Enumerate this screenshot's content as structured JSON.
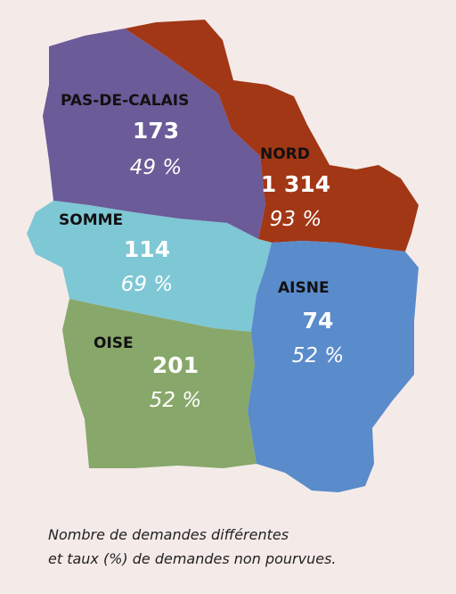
{
  "regions": [
    {
      "name": "PAS-DE-CALAIS",
      "count": "173",
      "rate": "49 %"
    },
    {
      "name": "NORD",
      "count": "1 314",
      "rate": "93 %"
    },
    {
      "name": "SOMME",
      "count": "114",
      "rate": "69 %"
    },
    {
      "name": "OISE",
      "count": "201",
      "rate": "52 %"
    },
    {
      "name": "AISNE",
      "count": "74",
      "rate": "52 %"
    }
  ],
  "caption": [
    "Nombre de demandes différentes",
    "et taux (%) de demandes non pourvues."
  ]
}
